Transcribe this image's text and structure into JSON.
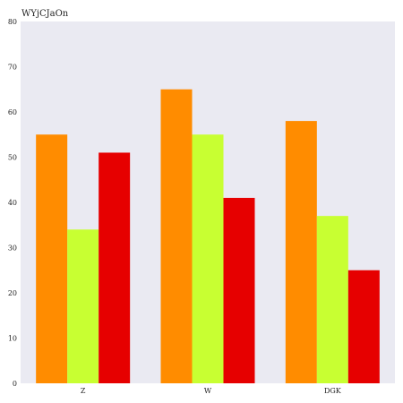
{
  "chart_data": {
    "type": "bar",
    "title": "WYjCJaOn",
    "xlabel": "",
    "ylabel": "",
    "categories": [
      "Z",
      "W",
      "DGK"
    ],
    "series": [
      {
        "values": [
          55,
          65,
          58
        ],
        "color": "#ff8c00"
      },
      {
        "values": [
          34,
          55,
          37
        ],
        "color": "#c8ff32"
      },
      {
        "values": [
          51,
          41,
          25
        ],
        "color": "#e60000"
      }
    ],
    "ylim": [
      0,
      80
    ],
    "yticks": [
      0,
      10,
      20,
      30,
      40,
      50,
      60,
      70,
      80
    ],
    "grid": false,
    "plot_background": "#eaeaf2"
  }
}
